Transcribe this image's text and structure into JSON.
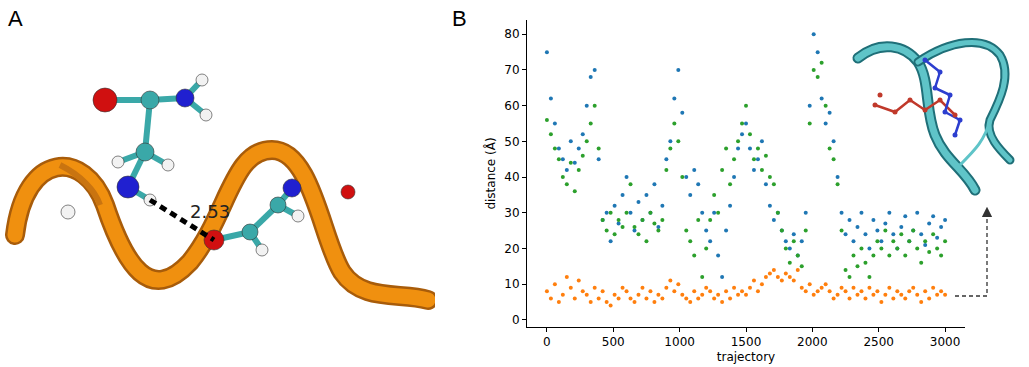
{
  "panel_a": {
    "letter": "A",
    "distance_label": "2.53"
  },
  "panel_b": {
    "letter": "B"
  },
  "chart_data": {
    "type": "scatter",
    "x_label": "trajectory",
    "y_label": "distance (Å)",
    "xlim": [
      -150,
      3150
    ],
    "ylim": [
      -2,
      84
    ],
    "xticks": [
      0,
      500,
      1000,
      1500,
      2000,
      2500,
      3000
    ],
    "yticks": [
      0,
      10,
      20,
      30,
      40,
      50,
      60,
      70,
      80
    ],
    "grid": false,
    "x": [
      0,
      30,
      60,
      90,
      120,
      150,
      180,
      210,
      240,
      270,
      300,
      330,
      360,
      390,
      420,
      450,
      480,
      510,
      540,
      570,
      600,
      630,
      660,
      690,
      720,
      750,
      780,
      810,
      840,
      870,
      900,
      930,
      960,
      990,
      1020,
      1050,
      1080,
      1110,
      1140,
      1170,
      1200,
      1230,
      1260,
      1290,
      1320,
      1350,
      1380,
      1410,
      1440,
      1470,
      1500,
      1530,
      1560,
      1590,
      1620,
      1650,
      1680,
      1710,
      1740,
      1770,
      1800,
      1830,
      1860,
      1890,
      1920,
      1950,
      1980,
      2010,
      2040,
      2070,
      2100,
      2130,
      2160,
      2190,
      2220,
      2250,
      2280,
      2310,
      2340,
      2370,
      2400,
      2430,
      2460,
      2490,
      2520,
      2550,
      2580,
      2610,
      2640,
      2670,
      2700,
      2730,
      2760,
      2790,
      2820,
      2850,
      2880,
      2910,
      2940,
      2970,
      3000
    ],
    "series": [
      {
        "color": "#1f77b4",
        "marker": "circle",
        "values": [
          75,
          62,
          55,
          48,
          45,
          42,
          50,
          44,
          48,
          52,
          60,
          68,
          70,
          45,
          28,
          30,
          22,
          32,
          27,
          35,
          40,
          30,
          25,
          33,
          28,
          35,
          30,
          38,
          26,
          32,
          45,
          50,
          62,
          70,
          58,
          40,
          35,
          42,
          38,
          30,
          25,
          22,
          30,
          18,
          12,
          25,
          32,
          40,
          48,
          52,
          55,
          48,
          42,
          45,
          50,
          38,
          32,
          28,
          30,
          25,
          22,
          20,
          24,
          18,
          22,
          30,
          60,
          80,
          75,
          62,
          55,
          58,
          50,
          40,
          30,
          24,
          28,
          22,
          26,
          30,
          24,
          20,
          28,
          25,
          22,
          27,
          30,
          24,
          20,
          26,
          29,
          22,
          25,
          30,
          24,
          21,
          27,
          29,
          23,
          26,
          28
        ]
      },
      {
        "color": "#ff7f0e",
        "marker": "circle",
        "values": [
          8,
          6,
          10,
          5,
          7,
          12,
          9,
          6,
          11,
          8,
          7,
          5,
          9,
          6,
          8,
          5,
          4,
          7,
          6,
          9,
          8,
          6,
          5,
          7,
          9,
          6,
          8,
          5,
          7,
          6,
          9,
          11,
          8,
          10,
          7,
          6,
          5,
          8,
          6,
          7,
          9,
          8,
          6,
          7,
          5,
          8,
          6,
          9,
          7,
          8,
          7,
          9,
          11,
          8,
          10,
          12,
          13,
          14,
          12,
          11,
          13,
          12,
          11,
          14,
          9,
          8,
          10,
          7,
          8,
          9,
          10,
          8,
          6,
          7,
          9,
          8,
          6,
          9,
          7,
          8,
          6,
          9,
          7,
          8,
          5,
          7,
          9,
          6,
          8,
          7,
          6,
          8,
          9,
          7,
          5,
          8,
          6,
          9,
          7,
          8,
          7
        ]
      },
      {
        "color": "#2ca02c",
        "marker": "circle",
        "values": [
          56,
          52,
          48,
          45,
          40,
          38,
          44,
          36,
          42,
          46,
          50,
          55,
          60,
          48,
          28,
          25,
          30,
          24,
          28,
          26,
          30,
          38,
          26,
          24,
          28,
          22,
          30,
          27,
          25,
          28,
          42,
          48,
          55,
          50,
          40,
          25,
          22,
          18,
          28,
          12,
          20,
          28,
          35,
          30,
          42,
          48,
          38,
          45,
          50,
          55,
          60,
          52,
          45,
          48,
          42,
          46,
          40,
          38,
          30,
          25,
          20,
          16,
          22,
          18,
          15,
          25,
          55,
          70,
          68,
          72,
          60,
          48,
          45,
          38,
          25,
          14,
          12,
          18,
          15,
          20,
          16,
          12,
          18,
          22,
          20,
          25,
          18,
          22,
          20,
          24,
          18,
          22,
          25,
          20,
          16,
          22,
          19,
          24,
          20,
          18,
          22
        ]
      }
    ]
  }
}
